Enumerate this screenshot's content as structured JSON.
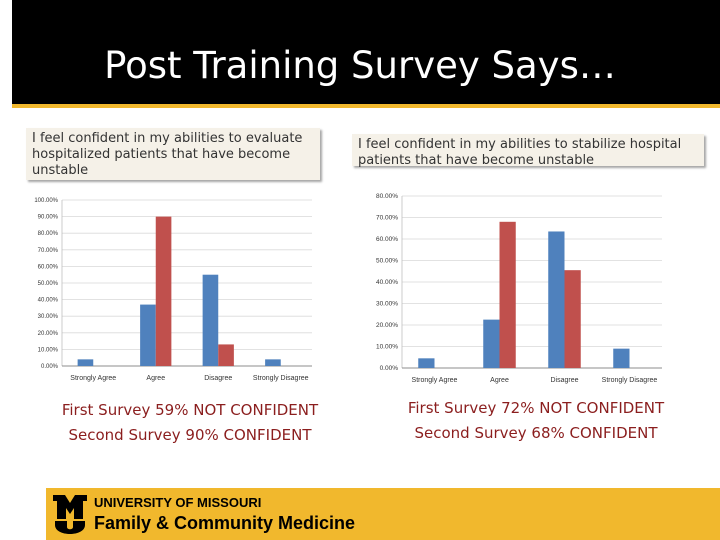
{
  "slide": {
    "title": "Post Training Survey Says…",
    "colors": {
      "title_bar": "#000000",
      "accent_gold": "#f1b82d",
      "summary_text": "#8b1e1e",
      "first_survey": "#4f81bd",
      "second_survey": "#c0504d"
    }
  },
  "questions": {
    "left": " I feel confident in my abilities to evaluate hospitalized patients that have become unstable",
    "right": " I feel confident in my abilities to stabilize hospital patients that have become unstable"
  },
  "summaries": {
    "left": {
      "line1": "First Survey  59% NOT CONFIDENT",
      "line2": "Second Survey 90% CONFIDENT"
    },
    "right": {
      "line1": "First Survey 72% NOT CONFIDENT",
      "line2": "Second Survey 68% CONFIDENT"
    }
  },
  "footer": {
    "university": "UNIVERSITY OF MISSOURI",
    "department": "Family & Community Medicine",
    "logo_icon": "mizzou-mu-logo"
  },
  "chart_data": [
    {
      "type": "bar",
      "title": "",
      "xlabel": "",
      "ylabel": "",
      "categories": [
        "Strongly Agree",
        "Agree",
        "Disagree",
        "Strongly Disagree"
      ],
      "series": [
        {
          "name": "First Survey",
          "values": [
            4,
            37,
            55,
            4
          ]
        },
        {
          "name": "Second Survey",
          "values": [
            0,
            90,
            13,
            0
          ]
        }
      ],
      "ylim": [
        0,
        100
      ],
      "yticks": [
        "0.00%",
        "10.00%",
        "20.00%",
        "30.00%",
        "40.00%",
        "50.00%",
        "60.00%",
        "70.00%",
        "80.00%",
        "90.00%",
        "100.00%"
      ],
      "grid": true,
      "legend": "none"
    },
    {
      "type": "bar",
      "title": "",
      "xlabel": "",
      "ylabel": "",
      "categories": [
        "Strongly Agree",
        "Agree",
        "Disagree",
        "Strongly Disagree"
      ],
      "series": [
        {
          "name": "First Survey",
          "values": [
            4.5,
            22.5,
            63.5,
            9
          ]
        },
        {
          "name": "Second Survey",
          "values": [
            0,
            68,
            45.5,
            0
          ]
        }
      ],
      "ylim": [
        0,
        80
      ],
      "yticks": [
        "0.00%",
        "10.00%",
        "20.00%",
        "30.00%",
        "40.00%",
        "50.00%",
        "60.00%",
        "70.00%",
        "80.00%"
      ],
      "grid": true,
      "legend": "none"
    }
  ]
}
